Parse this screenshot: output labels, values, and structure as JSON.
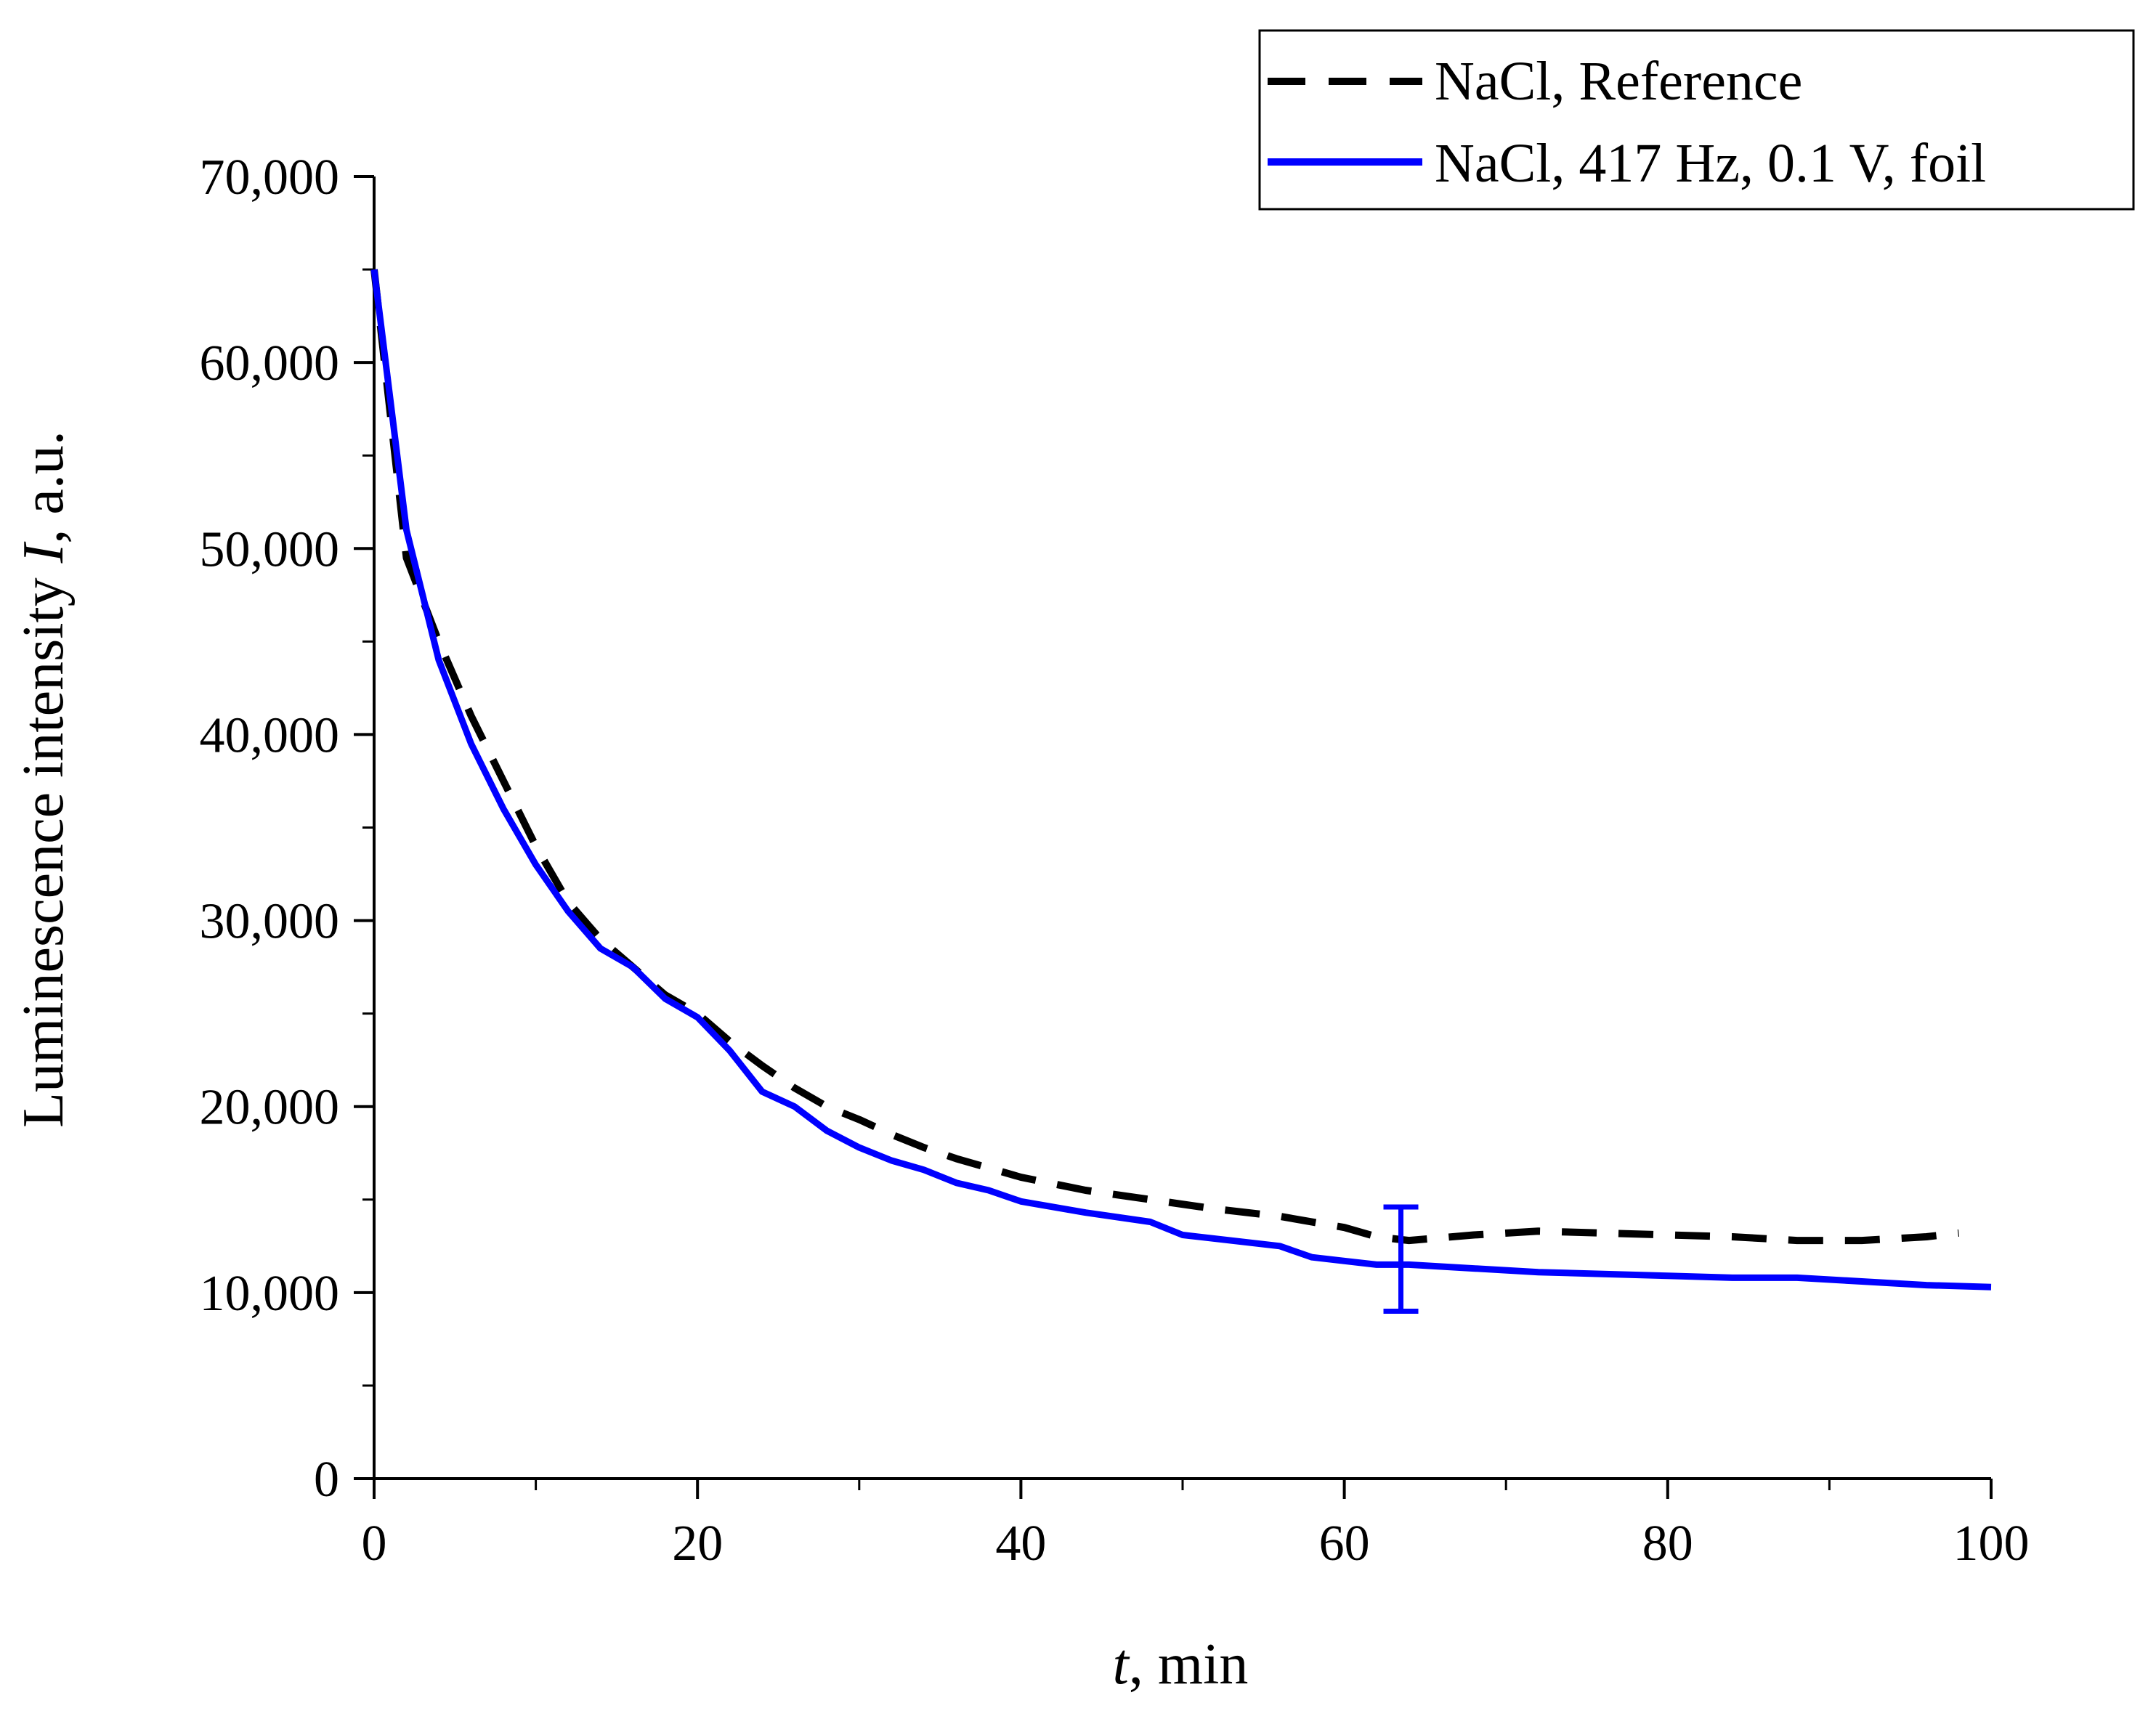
{
  "chart_data": {
    "type": "line",
    "title": "",
    "xlabel_var": "t",
    "xlabel_unit": ", min",
    "ylabel_prefix": "Luminescence intensity ",
    "ylabel_var": "I",
    "ylabel_unit": ", a.u.",
    "xlim": [
      0,
      100
    ],
    "ylim": [
      0,
      70000
    ],
    "x_ticks": [
      0,
      20,
      40,
      60,
      80,
      100
    ],
    "x_tick_labels": [
      "0",
      "20",
      "40",
      "60",
      "80",
      "100"
    ],
    "y_ticks": [
      0,
      10000,
      20000,
      30000,
      40000,
      50000,
      60000,
      70000
    ],
    "y_tick_labels": [
      "0",
      "10,000",
      "20,000",
      "30,000",
      "40,000",
      "50,000",
      "60,000",
      "70,000"
    ],
    "legend_position": "top-right",
    "series": [
      {
        "name": "NaCl, Reference",
        "color": "#000000",
        "style": "dashed",
        "x": [
          0,
          2,
          4,
          6,
          8,
          10,
          12,
          14,
          16,
          18,
          20,
          22,
          24,
          26,
          28,
          30,
          32,
          34,
          36,
          38,
          40,
          44,
          48,
          52,
          56,
          60,
          62,
          64,
          68,
          72,
          76,
          80,
          84,
          88,
          92,
          96,
          98
        ],
        "y": [
          65000,
          49500,
          45000,
          41000,
          37500,
          34000,
          31000,
          29000,
          27500,
          26000,
          25000,
          23500,
          22200,
          21000,
          20000,
          19300,
          18500,
          17800,
          17200,
          16700,
          16200,
          15500,
          15000,
          14500,
          14100,
          13500,
          13000,
          12800,
          13100,
          13300,
          13200,
          13100,
          13000,
          12800,
          12800,
          13000,
          13200
        ]
      },
      {
        "name": "NaCl, 417 Hz, 0.1 V, foil",
        "color": "#0000ff",
        "style": "solid",
        "x": [
          0,
          1,
          2,
          3,
          4,
          6,
          8,
          10,
          12,
          14,
          16,
          18,
          20,
          22,
          24,
          26,
          28,
          30,
          32,
          34,
          36,
          38,
          40,
          44,
          48,
          50,
          54,
          56,
          58,
          60,
          62,
          64,
          68,
          72,
          76,
          80,
          84,
          88,
          92,
          96,
          100
        ],
        "y": [
          65000,
          58000,
          51000,
          47500,
          44000,
          39500,
          36000,
          33000,
          30500,
          28500,
          27500,
          25800,
          24800,
          23000,
          20800,
          20000,
          18700,
          17800,
          17100,
          16600,
          15900,
          15500,
          14900,
          14300,
          13800,
          13100,
          12700,
          12500,
          11900,
          11700,
          11500,
          11500,
          11300,
          11100,
          11000,
          10900,
          10800,
          10800,
          10600,
          10400,
          10300
        ]
      }
    ],
    "error_bar": {
      "series": "NaCl, 417 Hz, 0.1 V, foil",
      "x": 63.5,
      "y": 11500,
      "lower": 9000,
      "upper": 14600,
      "color": "#0000ff"
    }
  }
}
